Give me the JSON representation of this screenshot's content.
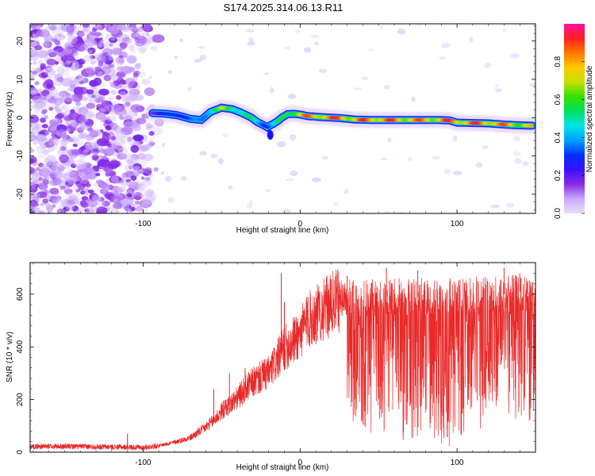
{
  "title": "S174.2025.314.06.13.R11",
  "colors": {
    "trace": "#e82a2a",
    "frame": "#000000",
    "background": "#ffffff"
  },
  "chart_data": [
    {
      "type": "heatmap",
      "xlabel": "Height of straight line (km)",
      "ylabel": "Frequency (Hz)",
      "xlim": [
        -172,
        150
      ],
      "ylim": [
        -25,
        24.5
      ],
      "xticks": [
        -100,
        0,
        100
      ],
      "yticks": [
        -20,
        -10,
        0,
        10,
        20
      ],
      "colorbar": {
        "label": "Normalized spectral amplitude",
        "range": [
          0,
          1
        ],
        "ticks": [
          0.0,
          0.2,
          0.4,
          0.6,
          0.8
        ],
        "stops": [
          "#e8e0f2",
          "#c9a8ff",
          "#8a2be2",
          "#3a10ff",
          "#0030ff",
          "#00a0ff",
          "#00e5e5",
          "#00e060",
          "#30e000",
          "#c8e000",
          "#ffc800",
          "#ff7800",
          "#ff2020",
          "#ff10a0"
        ]
      },
      "noise_region_x": [
        -172,
        -88
      ],
      "signal_ridge": {
        "x": [
          -94,
          -85,
          -78,
          -70,
          -63,
          -57,
          -50,
          -43,
          -37,
          -31,
          -27,
          -24,
          -21,
          -19,
          -17,
          -14,
          -11,
          -8,
          -4,
          0,
          5,
          15,
          25,
          35,
          45,
          55,
          65,
          75,
          85,
          95,
          100,
          110,
          120,
          130,
          140,
          148
        ],
        "y": [
          1.2,
          1.0,
          0.6,
          -0.3,
          -0.6,
          1.5,
          2.6,
          2.2,
          1.2,
          0.0,
          -1.2,
          -1.8,
          -2.5,
          -2.0,
          -1.6,
          -0.8,
          0.2,
          0.9,
          1.0,
          0.8,
          0.4,
          0.1,
          -0.1,
          -0.5,
          -0.6,
          -0.6,
          -0.6,
          -0.6,
          -0.6,
          -0.7,
          -1.3,
          -1.4,
          -1.5,
          -1.8,
          -2.0,
          -2.1
        ],
        "amplitude": [
          0.25,
          0.3,
          0.35,
          0.35,
          0.4,
          0.6,
          0.7,
          0.65,
          0.6,
          0.55,
          0.5,
          0.45,
          0.4,
          0.45,
          0.5,
          0.55,
          0.6,
          0.7,
          0.8,
          0.85,
          0.9,
          0.95,
          0.95,
          0.9,
          0.95,
          0.95,
          0.9,
          0.9,
          0.9,
          0.95,
          0.95,
          0.95,
          0.95,
          0.9,
          0.85,
          0.8
        ]
      }
    },
    {
      "type": "line",
      "xlabel": "Height of straight line (km)",
      "ylabel": "SNR (10 * v/v)",
      "xlim": [
        -172,
        150
      ],
      "ylim": [
        0,
        720
      ],
      "xticks": [
        -100,
        0,
        100
      ],
      "yticks": [
        0,
        200,
        400,
        600
      ],
      "series": [
        {
          "name": "SNR",
          "x": [
            -172,
            -140,
            -100,
            -90,
            -80,
            -70,
            -60,
            -55,
            -50,
            -45,
            -40,
            -35,
            -30,
            -25,
            -20,
            -15,
            -10,
            -5,
            0,
            5,
            10,
            15,
            20,
            25,
            30,
            40,
            50,
            60,
            70,
            80,
            90,
            100,
            110,
            120,
            130,
            140,
            150
          ],
          "y": [
            22,
            22,
            18,
            25,
            38,
            55,
            95,
            120,
            155,
            180,
            205,
            240,
            265,
            285,
            300,
            345,
            395,
            420,
            450,
            500,
            520,
            540,
            560,
            580,
            585,
            590,
            590,
            590,
            590,
            590,
            590,
            590,
            595,
            595,
            600,
            610,
            590
          ],
          "spike_x": [
            -110,
            -55,
            -45,
            -35,
            -12,
            -10,
            5,
            30,
            55,
            75,
            130,
            140,
            145
          ],
          "spike_y": [
            70,
            240,
            300,
            320,
            680,
            570,
            590,
            670,
            700,
            690,
            700,
            680,
            650
          ],
          "dip_x": [
            30,
            35,
            45,
            55,
            60,
            65,
            70,
            75,
            80,
            85,
            90,
            95,
            100,
            105,
            110,
            115,
            120,
            125,
            130,
            135,
            140,
            145,
            150
          ],
          "dip_y": [
            160,
            90,
            60,
            80,
            140,
            50,
            20,
            30,
            50,
            10,
            25,
            20,
            100,
            30,
            150,
            80,
            200,
            160,
            240,
            60,
            150,
            40,
            150
          ]
        }
      ]
    }
  ]
}
